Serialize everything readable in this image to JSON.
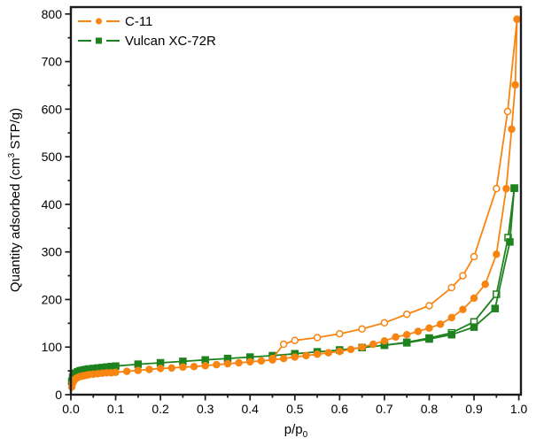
{
  "figure": {
    "background": "#ffffff",
    "frame_color": "#1a1a1a",
    "xlabel_main": "p/p",
    "xlabel_sub": "0",
    "ylabel_prefix": "Quantity adsorbed (cm",
    "ylabel_sup": "3",
    "ylabel_suffix": " STP/g)"
  },
  "legend": {
    "items": [
      {
        "label": "C-11",
        "color": "#F88511",
        "marker": "circle"
      },
      {
        "label": "Vulcan XC-72R",
        "color": "#1E821E",
        "marker": "square"
      }
    ]
  },
  "chart_data": {
    "type": "line",
    "title": "",
    "xlabel": "p/p0",
    "ylabel": "Quantity adsorbed (cm3 STP/g)",
    "xlim": [
      0.0,
      1.0
    ],
    "ylim": [
      0,
      800
    ],
    "x_major_ticks": [
      0.0,
      0.1,
      0.2,
      0.3,
      0.4,
      0.5,
      0.6,
      0.7,
      0.8,
      0.9,
      1.0
    ],
    "x_tick_labels": [
      "0.0",
      "0.1",
      "0.2",
      "0.3",
      "0.4",
      "0.5",
      "0.6",
      "0.7",
      "0.8",
      "0.9",
      "1.0"
    ],
    "x_minor_step": 0.05,
    "y_major_ticks": [
      0,
      100,
      200,
      300,
      400,
      500,
      600,
      700,
      800
    ],
    "y_tick_labels": [
      "0",
      "100",
      "200",
      "300",
      "400",
      "500",
      "600",
      "700",
      "800"
    ],
    "y_minor_step": 50,
    "grid": false,
    "legend_position": "top-left-inside",
    "series": [
      {
        "name": "C-11 adsorption",
        "color": "#F88511",
        "marker": "circle",
        "filled": true,
        "x": [
          0.002,
          0.004,
          0.006,
          0.008,
          0.01,
          0.015,
          0.02,
          0.025,
          0.03,
          0.035,
          0.04,
          0.05,
          0.06,
          0.07,
          0.08,
          0.09,
          0.1,
          0.125,
          0.15,
          0.175,
          0.2,
          0.225,
          0.25,
          0.275,
          0.3,
          0.325,
          0.35,
          0.375,
          0.4,
          0.425,
          0.45,
          0.475,
          0.5,
          0.525,
          0.55,
          0.575,
          0.6,
          0.625,
          0.65,
          0.675,
          0.7,
          0.725,
          0.75,
          0.775,
          0.8,
          0.825,
          0.85,
          0.875,
          0.9,
          0.925,
          0.95,
          0.972,
          0.984,
          0.992,
          0.996
        ],
        "y": [
          16,
          24,
          28,
          31,
          33,
          36,
          38,
          39,
          40,
          41,
          42,
          43,
          44,
          45,
          46,
          46,
          47,
          49,
          51,
          53,
          55,
          56,
          58,
          59,
          61,
          63,
          65,
          67,
          69,
          71,
          73,
          76,
          79,
          82,
          85,
          88,
          91,
          95,
          100,
          106,
          113,
          121,
          126,
          133,
          140,
          148,
          162,
          179,
          203,
          232,
          295,
          433,
          558,
          651,
          789
        ]
      },
      {
        "name": "C-11 desorption",
        "color": "#F88511",
        "marker": "circle",
        "filled": false,
        "x": [
          0.996,
          0.975,
          0.95,
          0.9,
          0.875,
          0.85,
          0.8,
          0.75,
          0.7,
          0.65,
          0.6,
          0.55,
          0.5,
          0.475,
          0.45
        ],
        "y": [
          789,
          595,
          433,
          290,
          250,
          225,
          187,
          169,
          151,
          138,
          128,
          120,
          114,
          106,
          76
        ]
      },
      {
        "name": "Vulcan XC-72R adsorption",
        "color": "#1E821E",
        "marker": "square",
        "filled": true,
        "x": [
          0.002,
          0.004,
          0.006,
          0.008,
          0.01,
          0.015,
          0.02,
          0.025,
          0.03,
          0.035,
          0.04,
          0.05,
          0.06,
          0.07,
          0.08,
          0.09,
          0.1,
          0.15,
          0.2,
          0.25,
          0.3,
          0.35,
          0.4,
          0.45,
          0.5,
          0.55,
          0.6,
          0.65,
          0.7,
          0.75,
          0.8,
          0.85,
          0.9,
          0.947,
          0.98,
          0.99
        ],
        "y": [
          28,
          36,
          40,
          43,
          45,
          48,
          50,
          51,
          52,
          53,
          54,
          55,
          56,
          57,
          58,
          59,
          60,
          64,
          67,
          70,
          73,
          76,
          79,
          82,
          86,
          90,
          94,
          99,
          104,
          109,
          117,
          126,
          142,
          181,
          321,
          434
        ]
      },
      {
        "name": "Vulcan XC-72R desorption",
        "color": "#1E821E",
        "marker": "square",
        "filled": false,
        "x": [
          0.99,
          0.976,
          0.95,
          0.9,
          0.85,
          0.8,
          0.75,
          0.7
        ],
        "y": [
          434,
          330,
          211,
          153,
          130,
          119,
          110,
          104
        ]
      }
    ]
  }
}
